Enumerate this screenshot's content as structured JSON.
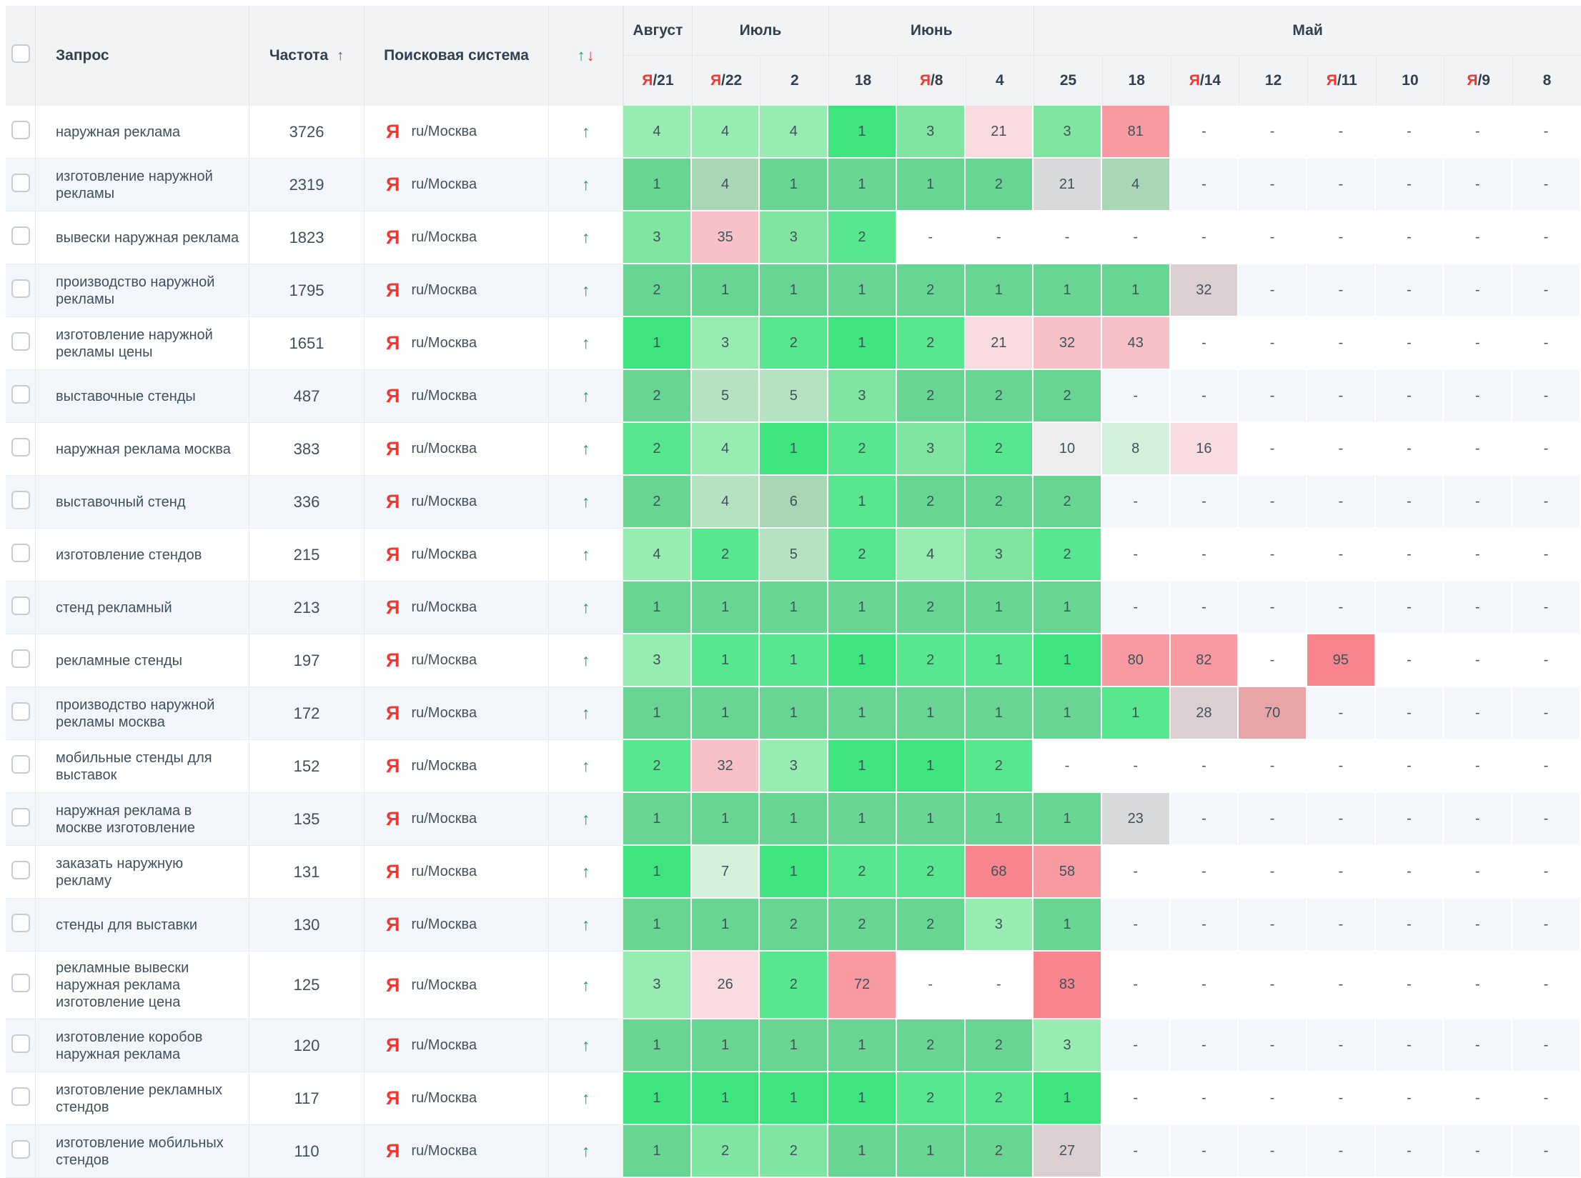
{
  "header": {
    "query_label": "Запрос",
    "frequency_label": "Частота",
    "frequency_sort_icon": "↑",
    "engine_label": "Поисковая система",
    "trend_up_icon": "↑",
    "trend_down_icon": "↓",
    "months": [
      {
        "label": "Август",
        "span": 1
      },
      {
        "label": "Июль",
        "span": 2
      },
      {
        "label": "Июнь",
        "span": 3
      },
      {
        "label": "Май",
        "span": 8
      }
    ],
    "dates": [
      {
        "day": "21",
        "yandex": true
      },
      {
        "day": "22",
        "yandex": true
      },
      {
        "day": "2",
        "yandex": false
      },
      {
        "day": "18",
        "yandex": false
      },
      {
        "day": "8",
        "yandex": true
      },
      {
        "day": "4",
        "yandex": false
      },
      {
        "day": "25",
        "yandex": false
      },
      {
        "day": "18",
        "yandex": false
      },
      {
        "day": "14",
        "yandex": true
      },
      {
        "day": "12",
        "yandex": false
      },
      {
        "day": "11",
        "yandex": true
      },
      {
        "day": "10",
        "yandex": false
      },
      {
        "day": "9",
        "yandex": true
      },
      {
        "day": "8",
        "yandex": false
      }
    ],
    "yandex_prefix": "Я"
  },
  "engine_cell": {
    "icon": "Я",
    "label": "ru/Москва"
  },
  "row_trend_icon": "↑",
  "empty_value": "-",
  "palette": {
    "g1": "#3ee57f",
    "g2": "#58e68e",
    "g3": "#68d593",
    "g4": "#7fe5a0",
    "g5": "#97ecb2",
    "g6": "#b5e3c2",
    "g7": "#d2f0da",
    "gy": "#a9d6b5",
    "gl": "#ededee",
    "gr": "#d8d9da",
    "gp": "#dccfd2",
    "dg": "#e9a4a7",
    "p1": "#f8dce0",
    "p2": "#f6c2c8",
    "p3": "#f79aa1",
    "p4": "#f8858e"
  },
  "colors": {
    "accent_green": "#12a455",
    "accent_red": "#f0393c",
    "yandex_red": "#f5352f",
    "header_bg": "#f1f3f5",
    "stripe_bg": "#f3f7fb"
  },
  "rows": [
    {
      "query": "наружная реклама",
      "frequency": "3726",
      "positions": [
        {
          "v": "4",
          "c": "g5"
        },
        {
          "v": "4",
          "c": "g5"
        },
        {
          "v": "4",
          "c": "g5"
        },
        {
          "v": "1",
          "c": "g1"
        },
        {
          "v": "3",
          "c": "g4"
        },
        {
          "v": "21",
          "c": "p1"
        },
        {
          "v": "3",
          "c": "g4"
        },
        {
          "v": "81",
          "c": "p3"
        },
        {
          "v": "-"
        },
        {
          "v": "-"
        },
        {
          "v": "-"
        },
        {
          "v": "-"
        },
        {
          "v": "-"
        },
        {
          "v": "-"
        }
      ]
    },
    {
      "query": "изготовление наружной рекламы",
      "frequency": "2319",
      "positions": [
        {
          "v": "1",
          "c": "g3"
        },
        {
          "v": "4",
          "c": "gy"
        },
        {
          "v": "1",
          "c": "g3"
        },
        {
          "v": "1",
          "c": "g3"
        },
        {
          "v": "1",
          "c": "g3"
        },
        {
          "v": "2",
          "c": "g3"
        },
        {
          "v": "21",
          "c": "gr"
        },
        {
          "v": "4",
          "c": "gy"
        },
        {
          "v": "-"
        },
        {
          "v": "-"
        },
        {
          "v": "-"
        },
        {
          "v": "-"
        },
        {
          "v": "-"
        },
        {
          "v": "-"
        }
      ]
    },
    {
      "query": "вывески наружная реклама",
      "frequency": "1823",
      "positions": [
        {
          "v": "3",
          "c": "g4"
        },
        {
          "v": "35",
          "c": "p2"
        },
        {
          "v": "3",
          "c": "g4"
        },
        {
          "v": "2",
          "c": "g2"
        },
        {
          "v": "-"
        },
        {
          "v": "-"
        },
        {
          "v": "-"
        },
        {
          "v": "-"
        },
        {
          "v": "-"
        },
        {
          "v": "-"
        },
        {
          "v": "-"
        },
        {
          "v": "-"
        },
        {
          "v": "-"
        },
        {
          "v": "-"
        }
      ]
    },
    {
      "query": "производство наружной рекламы",
      "frequency": "1795",
      "positions": [
        {
          "v": "2",
          "c": "g3"
        },
        {
          "v": "1",
          "c": "g3"
        },
        {
          "v": "1",
          "c": "g3"
        },
        {
          "v": "1",
          "c": "g3"
        },
        {
          "v": "2",
          "c": "g3"
        },
        {
          "v": "1",
          "c": "g3"
        },
        {
          "v": "1",
          "c": "g3"
        },
        {
          "v": "1",
          "c": "g3"
        },
        {
          "v": "32",
          "c": "gp"
        },
        {
          "v": "-"
        },
        {
          "v": "-"
        },
        {
          "v": "-"
        },
        {
          "v": "-"
        },
        {
          "v": "-"
        }
      ]
    },
    {
      "query": "изготовление наружной рекламы цены",
      "frequency": "1651",
      "positions": [
        {
          "v": "1",
          "c": "g1"
        },
        {
          "v": "3",
          "c": "g5"
        },
        {
          "v": "2",
          "c": "g2"
        },
        {
          "v": "1",
          "c": "g1"
        },
        {
          "v": "2",
          "c": "g2"
        },
        {
          "v": "21",
          "c": "p1"
        },
        {
          "v": "32",
          "c": "p2"
        },
        {
          "v": "43",
          "c": "p2"
        },
        {
          "v": "-"
        },
        {
          "v": "-"
        },
        {
          "v": "-"
        },
        {
          "v": "-"
        },
        {
          "v": "-"
        },
        {
          "v": "-"
        }
      ]
    },
    {
      "query": "выставочные стенды",
      "frequency": "487",
      "positions": [
        {
          "v": "2",
          "c": "g3"
        },
        {
          "v": "5",
          "c": "g6"
        },
        {
          "v": "5",
          "c": "g6"
        },
        {
          "v": "3",
          "c": "g4"
        },
        {
          "v": "2",
          "c": "g3"
        },
        {
          "v": "2",
          "c": "g3"
        },
        {
          "v": "2",
          "c": "g3"
        },
        {
          "v": "-"
        },
        {
          "v": "-"
        },
        {
          "v": "-"
        },
        {
          "v": "-"
        },
        {
          "v": "-"
        },
        {
          "v": "-"
        },
        {
          "v": "-"
        }
      ]
    },
    {
      "query": "наружная реклама москва",
      "frequency": "383",
      "positions": [
        {
          "v": "2",
          "c": "g2"
        },
        {
          "v": "4",
          "c": "g5"
        },
        {
          "v": "1",
          "c": "g1"
        },
        {
          "v": "2",
          "c": "g2"
        },
        {
          "v": "3",
          "c": "g4"
        },
        {
          "v": "2",
          "c": "g2"
        },
        {
          "v": "10",
          "c": "gl"
        },
        {
          "v": "8",
          "c": "g7"
        },
        {
          "v": "16",
          "c": "p1"
        },
        {
          "v": "-"
        },
        {
          "v": "-"
        },
        {
          "v": "-"
        },
        {
          "v": "-"
        },
        {
          "v": "-"
        }
      ]
    },
    {
      "query": "выставочный стенд",
      "frequency": "336",
      "positions": [
        {
          "v": "2",
          "c": "g3"
        },
        {
          "v": "4",
          "c": "g6"
        },
        {
          "v": "6",
          "c": "gy"
        },
        {
          "v": "1",
          "c": "g2"
        },
        {
          "v": "2",
          "c": "g3"
        },
        {
          "v": "2",
          "c": "g3"
        },
        {
          "v": "2",
          "c": "g3"
        },
        {
          "v": "-"
        },
        {
          "v": "-"
        },
        {
          "v": "-"
        },
        {
          "v": "-"
        },
        {
          "v": "-"
        },
        {
          "v": "-"
        },
        {
          "v": "-"
        }
      ]
    },
    {
      "query": "изготовление стендов",
      "frequency": "215",
      "positions": [
        {
          "v": "4",
          "c": "g5"
        },
        {
          "v": "2",
          "c": "g2"
        },
        {
          "v": "5",
          "c": "g6"
        },
        {
          "v": "2",
          "c": "g2"
        },
        {
          "v": "4",
          "c": "g5"
        },
        {
          "v": "3",
          "c": "g4"
        },
        {
          "v": "2",
          "c": "g2"
        },
        {
          "v": "-"
        },
        {
          "v": "-"
        },
        {
          "v": "-"
        },
        {
          "v": "-"
        },
        {
          "v": "-"
        },
        {
          "v": "-"
        },
        {
          "v": "-"
        }
      ]
    },
    {
      "query": "стенд рекламный",
      "frequency": "213",
      "positions": [
        {
          "v": "1",
          "c": "g3"
        },
        {
          "v": "1",
          "c": "g3"
        },
        {
          "v": "1",
          "c": "g3"
        },
        {
          "v": "1",
          "c": "g3"
        },
        {
          "v": "2",
          "c": "g3"
        },
        {
          "v": "1",
          "c": "g3"
        },
        {
          "v": "1",
          "c": "g3"
        },
        {
          "v": "-"
        },
        {
          "v": "-"
        },
        {
          "v": "-"
        },
        {
          "v": "-"
        },
        {
          "v": "-"
        },
        {
          "v": "-"
        },
        {
          "v": "-"
        }
      ]
    },
    {
      "query": "рекламные стенды",
      "frequency": "197",
      "positions": [
        {
          "v": "3",
          "c": "g5"
        },
        {
          "v": "1",
          "c": "g2"
        },
        {
          "v": "1",
          "c": "g2"
        },
        {
          "v": "1",
          "c": "g1"
        },
        {
          "v": "2",
          "c": "g2"
        },
        {
          "v": "1",
          "c": "g2"
        },
        {
          "v": "1",
          "c": "g1"
        },
        {
          "v": "80",
          "c": "p3"
        },
        {
          "v": "82",
          "c": "p3"
        },
        {
          "v": "-"
        },
        {
          "v": "95",
          "c": "p4"
        },
        {
          "v": "-"
        },
        {
          "v": "-"
        },
        {
          "v": "-"
        }
      ]
    },
    {
      "query": "производство наружной рекламы москва",
      "frequency": "172",
      "positions": [
        {
          "v": "1",
          "c": "g3"
        },
        {
          "v": "1",
          "c": "g3"
        },
        {
          "v": "1",
          "c": "g3"
        },
        {
          "v": "1",
          "c": "g3"
        },
        {
          "v": "1",
          "c": "g3"
        },
        {
          "v": "1",
          "c": "g3"
        },
        {
          "v": "1",
          "c": "g3"
        },
        {
          "v": "1",
          "c": "g2"
        },
        {
          "v": "28",
          "c": "gp"
        },
        {
          "v": "70",
          "c": "dg"
        },
        {
          "v": "-"
        },
        {
          "v": "-"
        },
        {
          "v": "-"
        },
        {
          "v": "-"
        }
      ]
    },
    {
      "query": "мобильные стенды для выставок",
      "frequency": "152",
      "positions": [
        {
          "v": "2",
          "c": "g2"
        },
        {
          "v": "32",
          "c": "p2"
        },
        {
          "v": "3",
          "c": "g5"
        },
        {
          "v": "1",
          "c": "g1"
        },
        {
          "v": "1",
          "c": "g1"
        },
        {
          "v": "2",
          "c": "g2"
        },
        {
          "v": "-"
        },
        {
          "v": "-"
        },
        {
          "v": "-"
        },
        {
          "v": "-"
        },
        {
          "v": "-"
        },
        {
          "v": "-"
        },
        {
          "v": "-"
        },
        {
          "v": "-"
        }
      ]
    },
    {
      "query": "наружная реклама в москве изготовление",
      "frequency": "135",
      "positions": [
        {
          "v": "1",
          "c": "g3"
        },
        {
          "v": "1",
          "c": "g3"
        },
        {
          "v": "1",
          "c": "g3"
        },
        {
          "v": "1",
          "c": "g3"
        },
        {
          "v": "1",
          "c": "g3"
        },
        {
          "v": "1",
          "c": "g3"
        },
        {
          "v": "1",
          "c": "g3"
        },
        {
          "v": "23",
          "c": "gr"
        },
        {
          "v": "-"
        },
        {
          "v": "-"
        },
        {
          "v": "-"
        },
        {
          "v": "-"
        },
        {
          "v": "-"
        },
        {
          "v": "-"
        }
      ]
    },
    {
      "query": "заказать наружную рекламу",
      "frequency": "131",
      "positions": [
        {
          "v": "1",
          "c": "g1"
        },
        {
          "v": "7",
          "c": "g7"
        },
        {
          "v": "1",
          "c": "g1"
        },
        {
          "v": "2",
          "c": "g2"
        },
        {
          "v": "2",
          "c": "g2"
        },
        {
          "v": "68",
          "c": "p4"
        },
        {
          "v": "58",
          "c": "p3"
        },
        {
          "v": "-"
        },
        {
          "v": "-"
        },
        {
          "v": "-"
        },
        {
          "v": "-"
        },
        {
          "v": "-"
        },
        {
          "v": "-"
        },
        {
          "v": "-"
        }
      ]
    },
    {
      "query": "стенды для выставки",
      "frequency": "130",
      "positions": [
        {
          "v": "1",
          "c": "g3"
        },
        {
          "v": "1",
          "c": "g3"
        },
        {
          "v": "2",
          "c": "g3"
        },
        {
          "v": "2",
          "c": "g3"
        },
        {
          "v": "2",
          "c": "g3"
        },
        {
          "v": "3",
          "c": "g5"
        },
        {
          "v": "1",
          "c": "g3"
        },
        {
          "v": "-"
        },
        {
          "v": "-"
        },
        {
          "v": "-"
        },
        {
          "v": "-"
        },
        {
          "v": "-"
        },
        {
          "v": "-"
        },
        {
          "v": "-"
        }
      ]
    },
    {
      "query": "рекламные вывески наружная реклама изготовление цена",
      "frequency": "125",
      "tall": true,
      "positions": [
        {
          "v": "3",
          "c": "g5"
        },
        {
          "v": "26",
          "c": "p1"
        },
        {
          "v": "2",
          "c": "g2"
        },
        {
          "v": "72",
          "c": "p3"
        },
        {
          "v": "-"
        },
        {
          "v": "-"
        },
        {
          "v": "83",
          "c": "p4"
        },
        {
          "v": "-"
        },
        {
          "v": "-"
        },
        {
          "v": "-"
        },
        {
          "v": "-"
        },
        {
          "v": "-"
        },
        {
          "v": "-"
        },
        {
          "v": "-"
        }
      ]
    },
    {
      "query": "изготовление коробов наружная реклама",
      "frequency": "120",
      "positions": [
        {
          "v": "1",
          "c": "g3"
        },
        {
          "v": "1",
          "c": "g3"
        },
        {
          "v": "1",
          "c": "g3"
        },
        {
          "v": "1",
          "c": "g3"
        },
        {
          "v": "2",
          "c": "g3"
        },
        {
          "v": "2",
          "c": "g3"
        },
        {
          "v": "3",
          "c": "g5"
        },
        {
          "v": "-"
        },
        {
          "v": "-"
        },
        {
          "v": "-"
        },
        {
          "v": "-"
        },
        {
          "v": "-"
        },
        {
          "v": "-"
        },
        {
          "v": "-"
        }
      ]
    },
    {
      "query": "изготовление рекламных стендов",
      "frequency": "117",
      "positions": [
        {
          "v": "1",
          "c": "g1"
        },
        {
          "v": "1",
          "c": "g1"
        },
        {
          "v": "1",
          "c": "g1"
        },
        {
          "v": "1",
          "c": "g1"
        },
        {
          "v": "2",
          "c": "g2"
        },
        {
          "v": "2",
          "c": "g2"
        },
        {
          "v": "1",
          "c": "g1"
        },
        {
          "v": "-"
        },
        {
          "v": "-"
        },
        {
          "v": "-"
        },
        {
          "v": "-"
        },
        {
          "v": "-"
        },
        {
          "v": "-"
        },
        {
          "v": "-"
        }
      ]
    },
    {
      "query": "изготовление мобильных стендов",
      "frequency": "110",
      "positions": [
        {
          "v": "1",
          "c": "g3"
        },
        {
          "v": "2",
          "c": "g4"
        },
        {
          "v": "2",
          "c": "g4"
        },
        {
          "v": "1",
          "c": "g3"
        },
        {
          "v": "1",
          "c": "g3"
        },
        {
          "v": "2",
          "c": "g3"
        },
        {
          "v": "27",
          "c": "gp"
        },
        {
          "v": "-"
        },
        {
          "v": "-"
        },
        {
          "v": "-"
        },
        {
          "v": "-"
        },
        {
          "v": "-"
        },
        {
          "v": "-"
        },
        {
          "v": "-"
        }
      ]
    }
  ]
}
